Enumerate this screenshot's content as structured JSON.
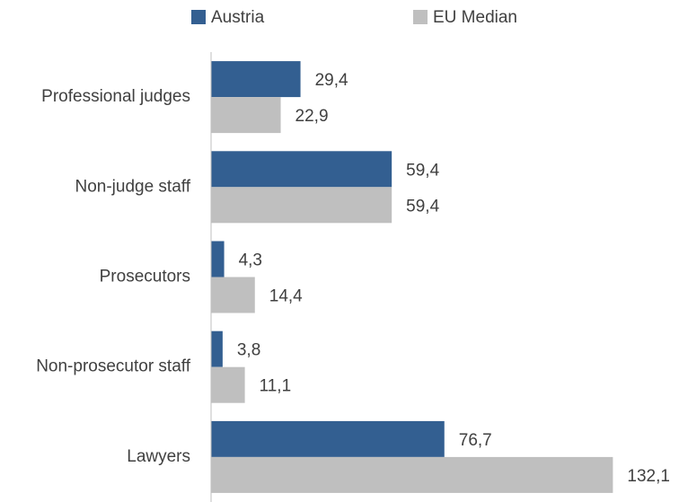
{
  "chart_data": {
    "type": "hbar",
    "categories": [
      "Professional judges",
      "Non-judge staff",
      "Prosecutors",
      "Non-prosecutor staff",
      "Lawyers"
    ],
    "series": [
      {
        "name": "Austria",
        "color": "#335f91",
        "values": [
          29.4,
          59.4,
          4.3,
          3.8,
          76.7
        ],
        "value_labels": [
          "29,4",
          "59,4",
          "4,3",
          "3,8",
          "76,7"
        ]
      },
      {
        "name": "EU Median",
        "color": "#bfbfbf",
        "values": [
          22.9,
          59.4,
          14.4,
          11.1,
          132.1
        ],
        "value_labels": [
          "22,9",
          "59,4",
          "14,4",
          "11,1",
          "132,1"
        ]
      }
    ],
    "xlim": [
      0,
      150
    ],
    "legend": "top"
  }
}
